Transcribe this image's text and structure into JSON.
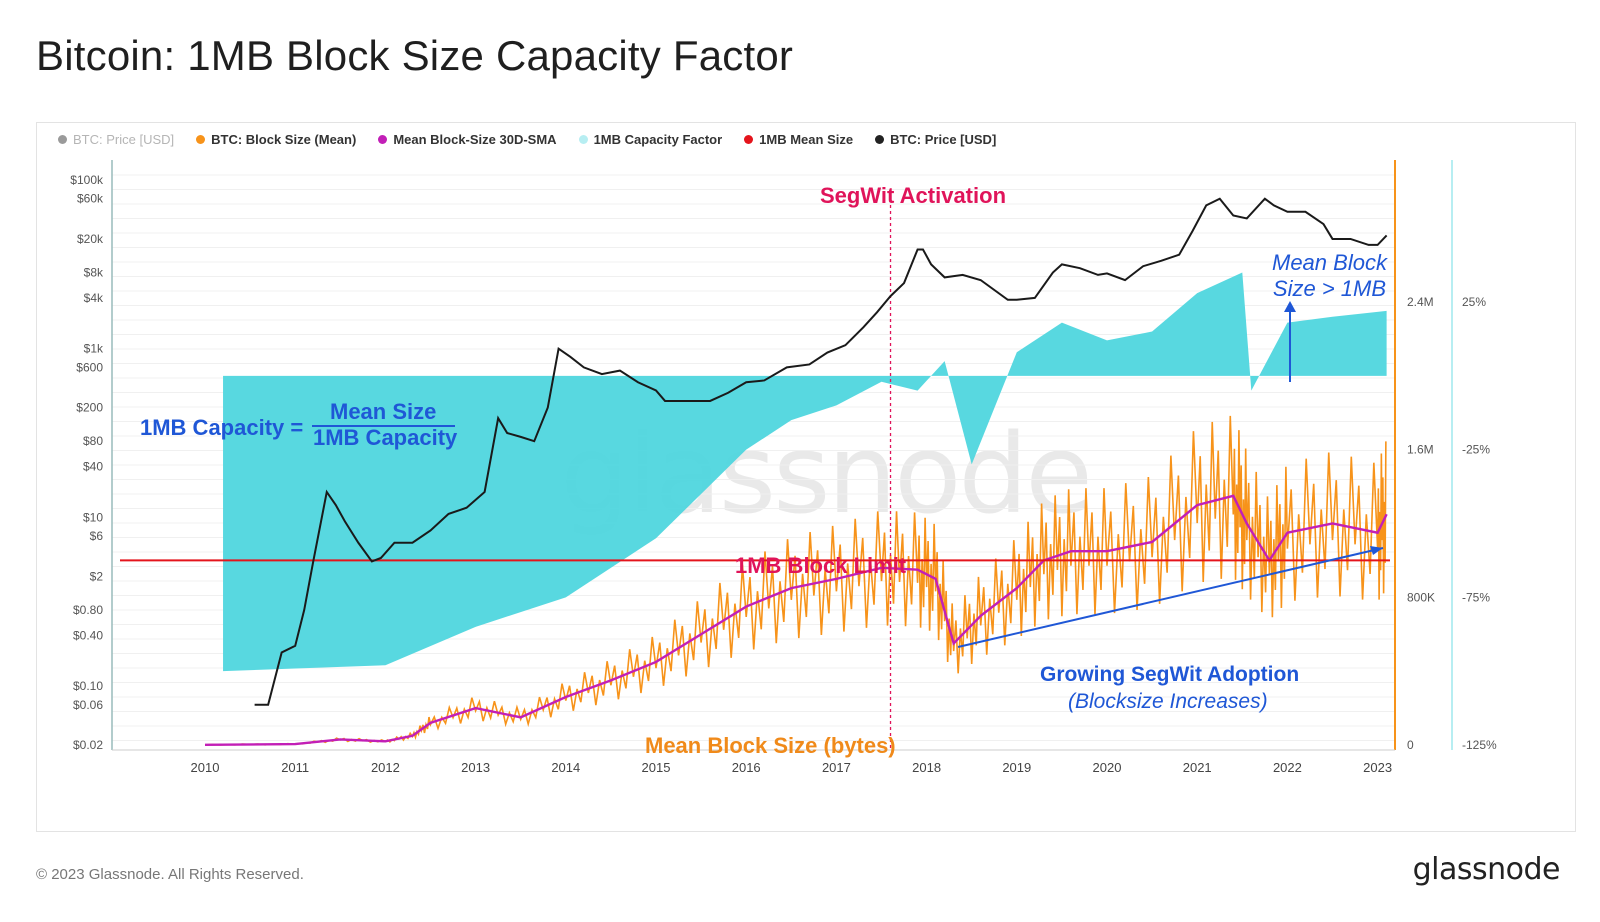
{
  "title": "Bitcoin: 1MB Block Size Capacity Factor",
  "legend": [
    {
      "label": "BTC: Price [USD]",
      "color": "#9a9a9a",
      "muted": true
    },
    {
      "label": "BTC: Block Size (Mean)",
      "color": "#f7931a",
      "muted": false
    },
    {
      "label": "Mean Block-Size 30D-SMA",
      "color": "#c21fb7",
      "muted": false
    },
    {
      "label": "1MB Capacity Factor",
      "color": "#b7eef2",
      "muted": false
    },
    {
      "label": "1MB Mean Size",
      "color": "#e4141c",
      "muted": false
    },
    {
      "label": "BTC: Price [USD]",
      "color": "#222222",
      "muted": false
    }
  ],
  "annotations": {
    "segwit": "SegWit Activation",
    "limit": "1MB Block Limit",
    "mean_block_size": "Mean Block Size (bytes)",
    "growing": "Growing SegWit Adoption",
    "growing_sub": "(Blocksize Increases)",
    "mean_block_1": "Mean Block",
    "mean_block_2": "Size > 1MB",
    "formula_left": "1MB Capacity =",
    "formula_num": "Mean Size",
    "formula_den": "1MB Capacity"
  },
  "watermark": "glassnode",
  "footer": {
    "copyright": "© 2023 Glassnode. All Rights Reserved.",
    "brand": "glassnode"
  },
  "colors": {
    "price": "#1a1a1a",
    "block_size": "#f7931a",
    "sma": "#c21fb7",
    "capacity": "#4fd6de",
    "limit": "#e4141c",
    "segwit_line": "#e0145a",
    "arrow": "#1f57d6"
  },
  "chart_data": {
    "type": "line",
    "title": "Bitcoin: 1MB Block Size Capacity Factor",
    "x_ticks": [
      "2010",
      "2011",
      "2012",
      "2013",
      "2014",
      "2015",
      "2016",
      "2017",
      "2018",
      "2019",
      "2020",
      "2021",
      "2022",
      "2023"
    ],
    "y_left_ticks": [
      "$100k",
      "$60k",
      "$20k",
      "$8k",
      "$4k",
      "$1k",
      "$600",
      "$200",
      "$80",
      "$40",
      "$10",
      "$6",
      "$2",
      "$0.80",
      "$0.40",
      "$0.10",
      "$0.06",
      "$0.02"
    ],
    "y_right1_ticks": [
      "2.4M",
      "1.6M",
      "800K",
      "0"
    ],
    "y_right2_ticks": [
      "25%",
      "-25%",
      "-75%",
      "-125%"
    ],
    "scale_left": "log",
    "segwit_activation": 2017.6,
    "limit_bytes": 1000000,
    "series": [
      {
        "name": "BTC: Price [USD]",
        "x": [
          2010.55,
          2010.7,
          2010.85,
          2011.0,
          2011.1,
          2011.2,
          2011.35,
          2011.45,
          2011.55,
          2011.7,
          2011.85,
          2011.95,
          2012.1,
          2012.3,
          2012.5,
          2012.7,
          2012.9,
          2013.1,
          2013.25,
          2013.35,
          2013.5,
          2013.65,
          2013.8,
          2013.92,
          2014.05,
          2014.2,
          2014.4,
          2014.6,
          2014.8,
          2015.0,
          2015.1,
          2015.3,
          2015.6,
          2015.8,
          2016.0,
          2016.2,
          2016.45,
          2016.7,
          2016.9,
          2017.1,
          2017.3,
          2017.45,
          2017.6,
          2017.75,
          2017.9,
          2017.96,
          2018.05,
          2018.2,
          2018.4,
          2018.6,
          2018.9,
          2019.0,
          2019.2,
          2019.4,
          2019.5,
          2019.7,
          2019.9,
          2020.0,
          2020.2,
          2020.4,
          2020.6,
          2020.8,
          2020.95,
          2021.1,
          2021.25,
          2021.4,
          2021.55,
          2021.75,
          2021.85,
          2022.0,
          2022.2,
          2022.4,
          2022.5,
          2022.7,
          2022.9,
          2023.0,
          2023.1
        ],
        "values": [
          0.06,
          0.06,
          0.25,
          0.3,
          0.8,
          3,
          20,
          14,
          9,
          5,
          3,
          3.3,
          5,
          5,
          7,
          11,
          13,
          20,
          150,
          100,
          90,
          80,
          200,
          1000,
          800,
          600,
          500,
          550,
          400,
          320,
          240,
          240,
          240,
          300,
          400,
          420,
          600,
          650,
          900,
          1100,
          1800,
          2700,
          4200,
          6000,
          15000,
          15000,
          10000,
          7000,
          7500,
          6500,
          3800,
          3800,
          4000,
          8000,
          10000,
          9000,
          7500,
          7800,
          6500,
          9500,
          11000,
          13000,
          25000,
          50000,
          60000,
          38000,
          35000,
          60000,
          50000,
          42000,
          42000,
          30000,
          20000,
          20000,
          17000,
          17000,
          22000
        ]
      },
      {
        "name": "Mean Block-Size 30D-SMA",
        "x": [
          2010.0,
          2011.0,
          2011.5,
          2012.0,
          2012.3,
          2012.5,
          2013.0,
          2013.5,
          2014.0,
          2014.5,
          2015.0,
          2015.5,
          2016.0,
          2016.5,
          2017.0,
          2017.5,
          2017.9,
          2018.1,
          2018.3,
          2018.6,
          2019.0,
          2019.3,
          2019.6,
          2020.0,
          2020.5,
          2021.0,
          2021.4,
          2021.55,
          2021.8,
          2022.0,
          2022.5,
          2023.0,
          2023.1
        ],
        "values": [
          1000,
          5000,
          30000,
          20000,
          50000,
          120000,
          200000,
          150000,
          260000,
          350000,
          450000,
          600000,
          750000,
          850000,
          900000,
          960000,
          950000,
          900000,
          550000,
          700000,
          850000,
          1000000,
          1050000,
          1050000,
          1100000,
          1300000,
          1350000,
          1200000,
          1000000,
          1150000,
          1200000,
          1150000,
          1250000
        ]
      },
      {
        "name": "1MB Capacity Factor",
        "x": [
          2010.2,
          2012.0,
          2013.0,
          2014.0,
          2015.0,
          2015.5,
          2016.0,
          2016.5,
          2017.0,
          2017.5,
          2017.9,
          2018.2,
          2018.5,
          2019.0,
          2019.5,
          2020.0,
          2020.5,
          2021.0,
          2021.5,
          2021.6,
          2022.0,
          2022.5,
          2023.1
        ],
        "values": [
          -100,
          -98,
          -85,
          -75,
          -55,
          -40,
          -25,
          -15,
          -10,
          -2,
          -5,
          5,
          -30,
          8,
          18,
          12,
          15,
          28,
          35,
          -5,
          18,
          20,
          22
        ]
      }
    ]
  }
}
